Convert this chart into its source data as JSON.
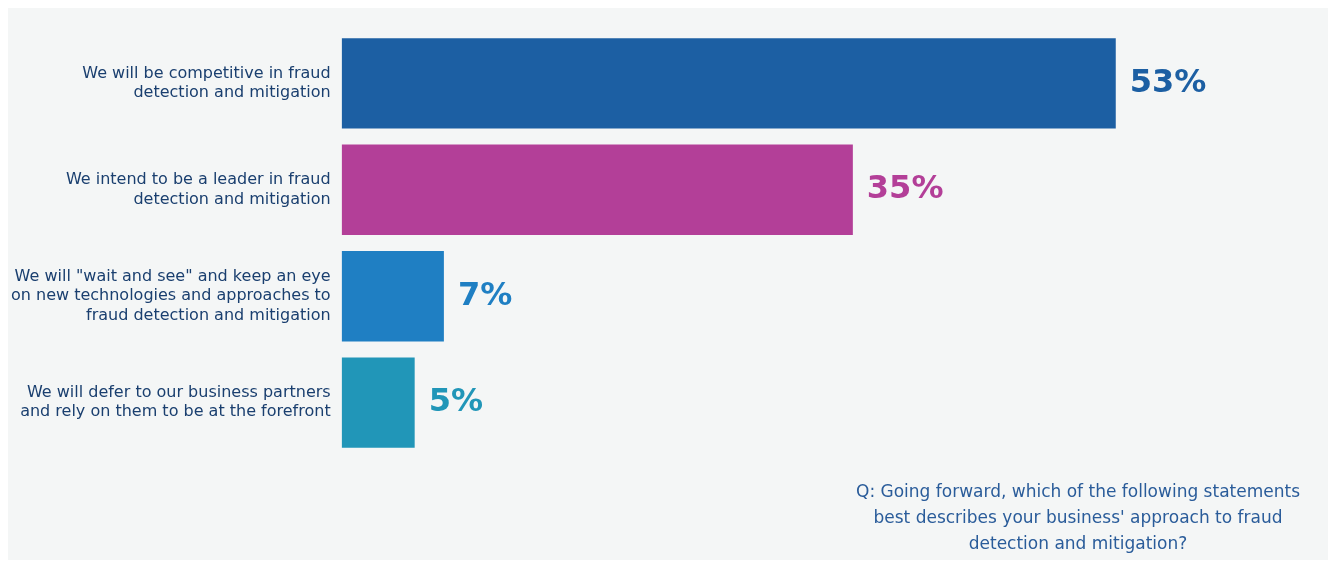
{
  "chart_data": {
    "type": "bar",
    "orientation": "horizontal",
    "categories": [
      "We will be competitive in fraud detection and mitigation",
      "We intend to be a leader in fraud detection and mitigation",
      "We will \"wait and see\" and keep an eye on new technologies and approaches to fraud detection and mitigation",
      "We will defer to our business partners and rely on them to be at the forefront"
    ],
    "values": [
      53,
      35,
      7,
      5
    ],
    "colors": [
      "#1c5fa3",
      "#b33f98",
      "#1f7fc3",
      "#2196b8"
    ],
    "value_labels": [
      "53%",
      "35%",
      "7%",
      "5%"
    ],
    "grid": false,
    "legend": false,
    "annotations": [
      "Q: Going forward, which of the following statements best describes your business' approach to fraud detection and mitigation?"
    ]
  }
}
